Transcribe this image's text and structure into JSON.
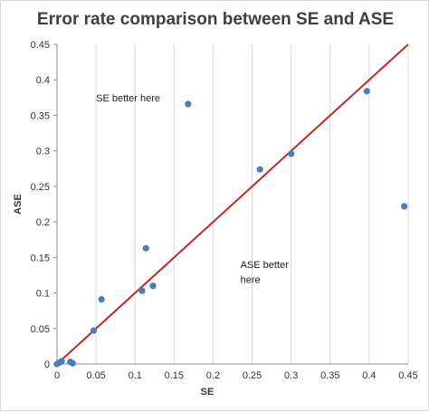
{
  "chart_data": {
    "type": "scatter",
    "title": "Error rate comparison between SE and ASE",
    "xlabel": "SE",
    "ylabel": "ASE",
    "xlim": [
      0,
      0.45
    ],
    "ylim": [
      0,
      0.45
    ],
    "x_ticks": [
      "0",
      "0.05",
      "0.1",
      "0.15",
      "0.2",
      "0.25",
      "0.3",
      "0.35",
      "0.4",
      "0.45"
    ],
    "y_ticks": [
      "0",
      "0.05",
      "0.1",
      "0.15",
      "0.2",
      "0.25",
      "0.3",
      "0.35",
      "0.4",
      "0.45"
    ],
    "grid": "vertical",
    "points": [
      {
        "x": 0.0,
        "y": 0.0
      },
      {
        "x": 0.003,
        "y": 0.002
      },
      {
        "x": 0.006,
        "y": 0.004
      },
      {
        "x": 0.017,
        "y": 0.003
      },
      {
        "x": 0.02,
        "y": 0.001
      },
      {
        "x": 0.047,
        "y": 0.047
      },
      {
        "x": 0.057,
        "y": 0.091
      },
      {
        "x": 0.109,
        "y": 0.103
      },
      {
        "x": 0.114,
        "y": 0.163
      },
      {
        "x": 0.123,
        "y": 0.11
      },
      {
        "x": 0.168,
        "y": 0.366
      },
      {
        "x": 0.26,
        "y": 0.274
      },
      {
        "x": 0.3,
        "y": 0.296
      },
      {
        "x": 0.397,
        "y": 0.384
      },
      {
        "x": 0.445,
        "y": 0.222
      }
    ],
    "reference_line": {
      "from": [
        0,
        0
      ],
      "to": [
        0.45,
        0.45
      ],
      "color": "#c0282a"
    },
    "annotations": [
      {
        "text": "SE better here",
        "x": 0.05,
        "y": 0.37
      },
      {
        "text": "ASE better",
        "x": 0.235,
        "y": 0.135
      },
      {
        "text": "here",
        "x": 0.235,
        "y": 0.114
      }
    ],
    "colors": {
      "points": "#4a7ebb",
      "line": "#c0282a",
      "grid": "#d9d9d9"
    }
  }
}
